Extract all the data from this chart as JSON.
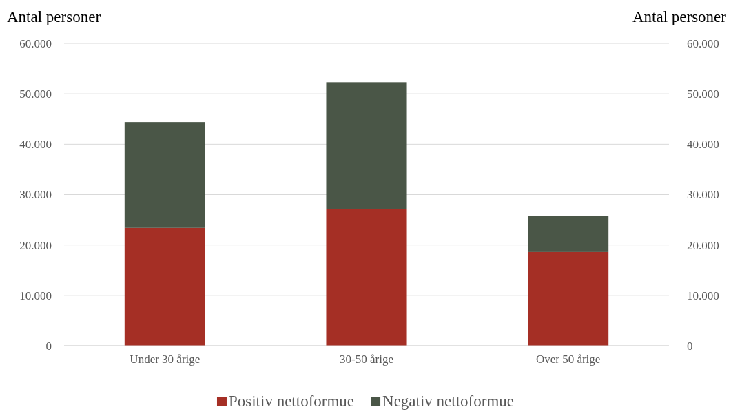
{
  "chart_data": {
    "type": "bar",
    "stacked": true,
    "categories": [
      "Under 30 årige",
      "30-50 årige",
      "Over 50 årige"
    ],
    "series": [
      {
        "name": "Positiv nettoformue",
        "color": "#a52f25",
        "values": [
          23400,
          27200,
          18600
        ]
      },
      {
        "name": "Negativ nettoformue",
        "color": "#4a5647",
        "values": [
          21000,
          25100,
          7100
        ]
      }
    ],
    "ylabel": "Antal personer",
    "y2label": "Antal personer",
    "ylim": [
      0,
      60000
    ],
    "yticks": [
      0,
      {
        "value": 10000,
        "label": "10.000"
      },
      {
        "value": 20000,
        "label": "20.000"
      },
      {
        "value": 30000,
        "label": "30.000"
      },
      {
        "value": 40000,
        "label": "40.000"
      },
      {
        "value": 50000,
        "label": "50.000"
      },
      {
        "value": 60000,
        "label": "60.000"
      }
    ],
    "y2lim": [
      0,
      60000
    ],
    "y2ticks": [
      0,
      {
        "value": 10000,
        "label": "10.000"
      },
      {
        "value": 20000,
        "label": "20.000"
      },
      {
        "value": 30000,
        "label": "30.000"
      },
      {
        "value": 40000,
        "label": "40.000"
      },
      {
        "value": 50000,
        "label": "50.000"
      },
      {
        "value": 60000,
        "label": "60.000"
      }
    ],
    "grid": "y",
    "legend": "bottom"
  }
}
